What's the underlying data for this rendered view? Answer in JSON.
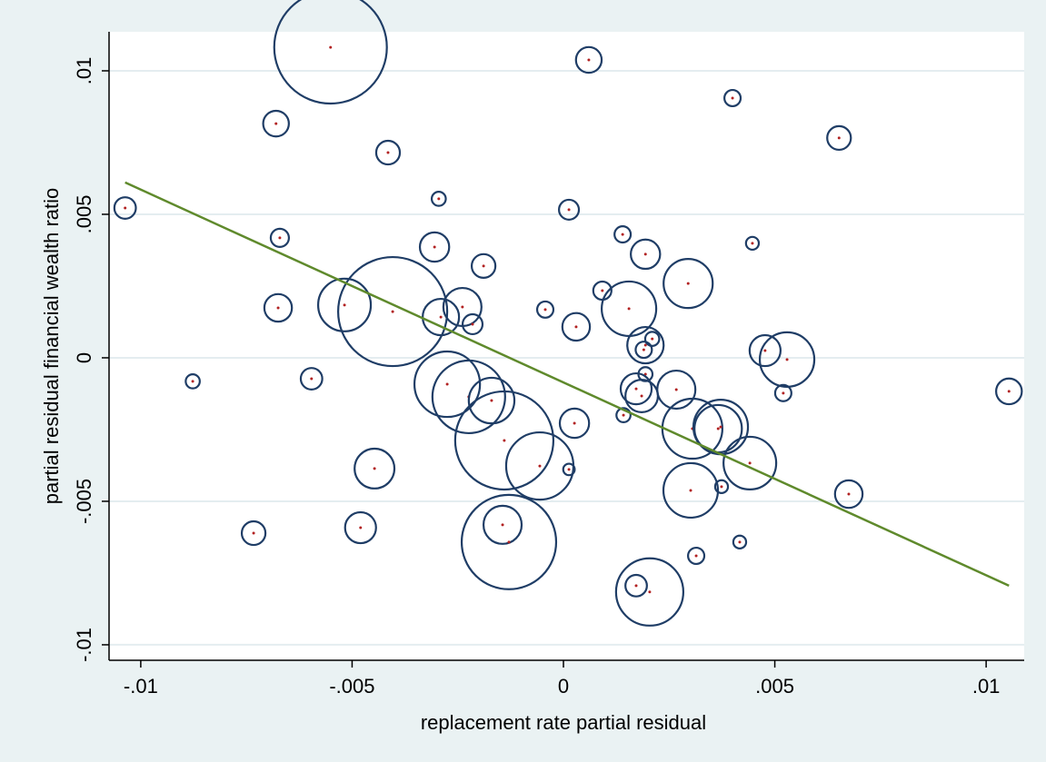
{
  "chart_data": {
    "type": "bubble",
    "x_label": "replacement rate partial residual",
    "y_label": "partial residual financial wealth ratio",
    "xlim": [
      -0.01075,
      0.0109
    ],
    "ylim": [
      -0.01054,
      0.01136
    ],
    "xticks": [
      {
        "value": -0.01,
        "label": "-.01"
      },
      {
        "value": -0.005,
        "label": "-.005"
      },
      0,
      {
        "value": 0.005,
        "label": ".005"
      },
      {
        "value": 0.01,
        "label": ".01"
      }
    ],
    "yticks": [
      {
        "value": -0.01,
        "label": "-.01"
      },
      {
        "value": -0.005,
        "label": "-.005"
      },
      0,
      {
        "value": 0.005,
        "label": ".005"
      },
      {
        "value": 0.01,
        "label": ".01"
      }
    ],
    "grid": true,
    "x": [
      -0.00551,
      0.0006,
      0.004,
      -0.0068,
      -0.00415,
      0.00652,
      -0.01037,
      -0.00295,
      0.00013,
      -0.00671,
      -0.00305,
      0.0014,
      0.00194,
      0.00447,
      -0.00189,
      0.00295,
      0.00092,
      -0.00675,
      -0.00518,
      -0.00404,
      -0.0029,
      -0.00239,
      -0.00215,
      -0.00043,
      0.0003,
      0.00155,
      0.00194,
      0.0021,
      0.0019,
      0.00477,
      0.00529,
      -0.00877,
      -0.00596,
      -0.00275,
      -0.00224,
      -0.0017,
      -0.0014,
      0.00194,
      0.00172,
      0.00185,
      0.00267,
      0.0052,
      0.01054,
      0.00142,
      0.00026,
      0.00305,
      0.00372,
      0.00366,
      0.00441,
      -0.00056,
      -0.00447,
      0.00013,
      0.00301,
      0.00374,
      0.00675,
      -0.00733,
      -0.0048,
      -0.00144,
      -0.00129,
      0.00314,
      0.00417,
      0.00172,
      0.00204
    ],
    "series": [
      {
        "color": "#1f3d66",
        "center_color": "#b22222",
        "values": [
          0.01082,
          0.01038,
          0.00905,
          0.00816,
          0.00715,
          0.00766,
          0.00522,
          0.00554,
          0.00516,
          0.00418,
          0.00386,
          0.0043,
          0.00361,
          0.00399,
          0.0032,
          0.00259,
          0.00234,
          0.00174,
          0.00184,
          0.00161,
          0.00142,
          0.00177,
          0.00117,
          0.00168,
          0.00108,
          0.00171,
          0.00044,
          0.00066,
          0.00028,
          0.00025,
          -6e-05,
          -0.00082,
          -0.00073,
          -0.00092,
          -0.00136,
          -0.00149,
          -0.00288,
          -0.00057,
          -0.00108,
          -0.00133,
          -0.00111,
          -0.00123,
          -0.00117,
          -0.002,
          -0.00228,
          -0.00247,
          -0.00241,
          -0.00247,
          -0.00367,
          -0.00377,
          -0.00386,
          -0.00389,
          -0.00462,
          -0.00449,
          -0.00475,
          -0.00611,
          -0.00592,
          -0.00582,
          -0.00642,
          -0.0069,
          -0.00642,
          -0.00794,
          -0.00816
        ],
        "sizes": [
          38.4,
          2,
          0.8,
          2,
          1.7,
          1.7,
          1.4,
          0.6,
          1.2,
          1,
          2.6,
          0.8,
          2.6,
          0.5,
          1.7,
          7.3,
          1,
          2.3,
          8.4,
          36,
          4,
          4.4,
          1.2,
          0.8,
          2.3,
          9,
          4,
          0.6,
          0.8,
          2.9,
          9,
          0.6,
          1.4,
          13,
          16,
          6.3,
          29.2,
          0.6,
          2.9,
          3.2,
          4.4,
          0.8,
          2,
          0.6,
          2.6,
          10.9,
          9,
          6.8,
          8.4,
          13.7,
          4.8,
          0.4,
          9,
          0.5,
          2.3,
          1.7,
          2.9,
          4.4,
          27,
          0.8,
          0.5,
          1.4,
          13.7
        ]
      }
    ],
    "fit": {
      "color": "#5f8a2c",
      "x": [
        -0.01037,
        0.01054
      ],
      "values": [
        0.00611,
        -0.00794
      ]
    }
  }
}
